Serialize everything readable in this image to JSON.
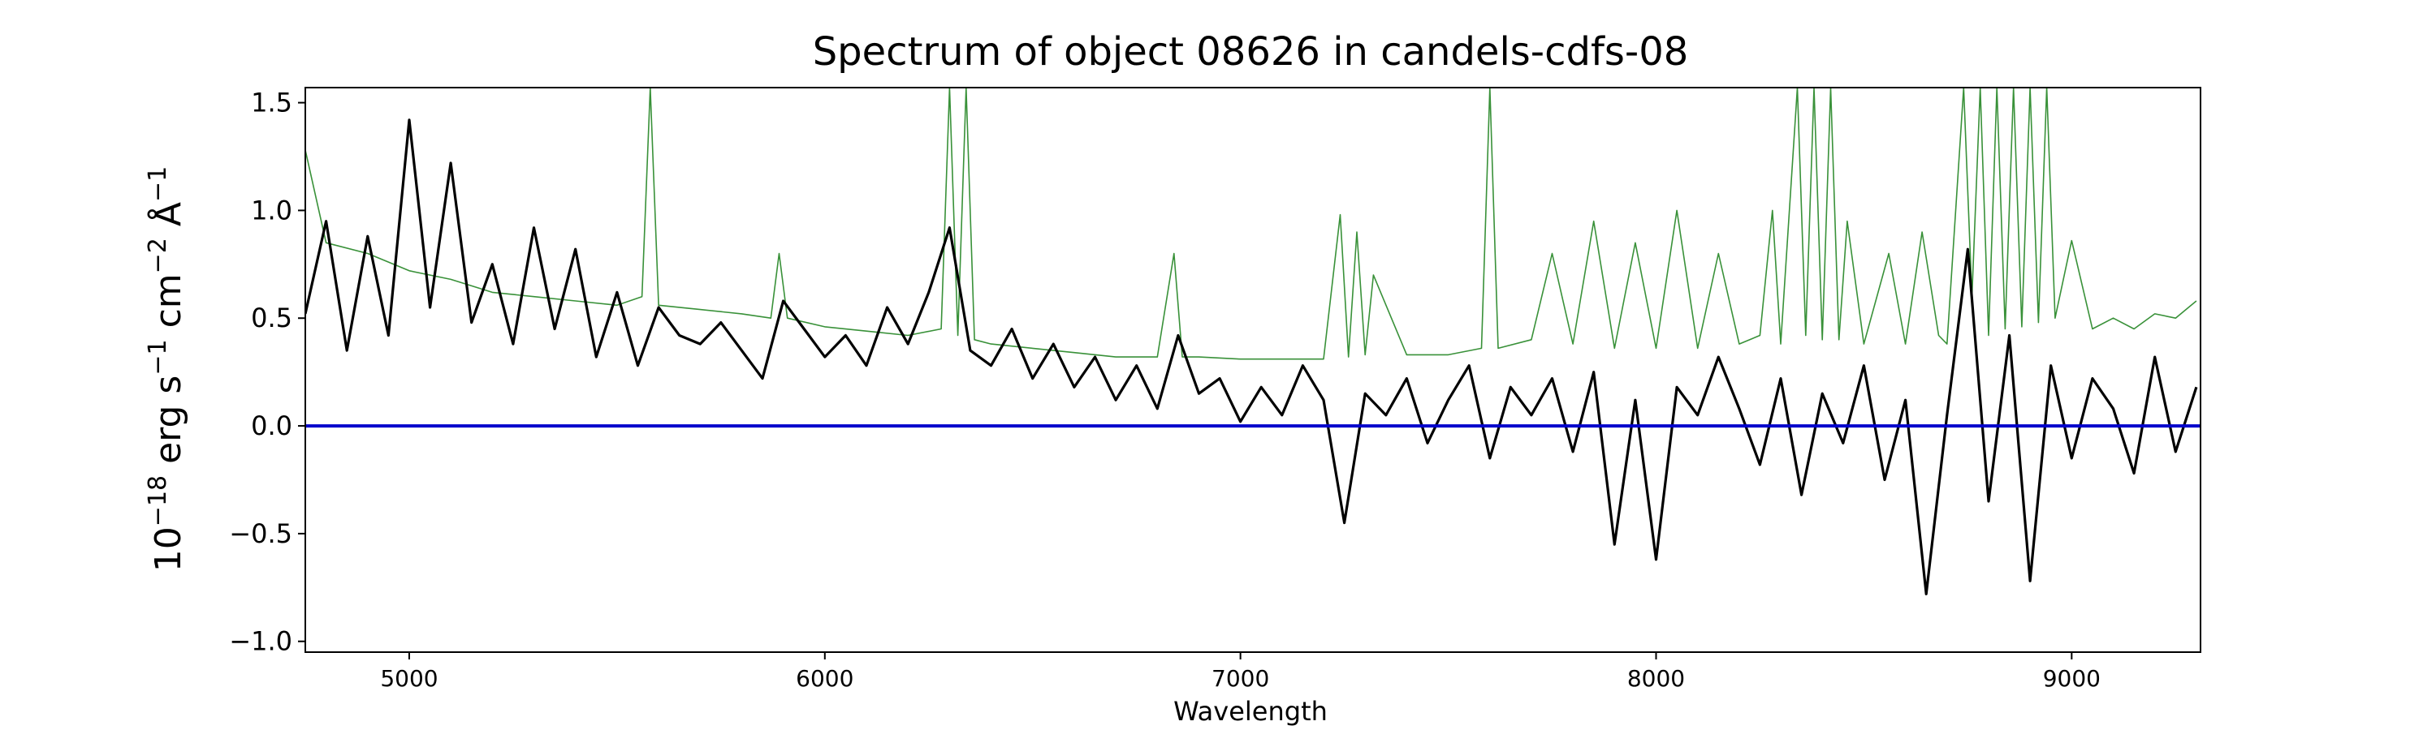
{
  "chart_data": {
    "type": "line",
    "title": "Spectrum of object 08626 in candels-cdfs-08",
    "xlabel": "Wavelength",
    "ylabel": "10−18 erg s−1 cm−2 Å−1",
    "ylabel_parts": {
      "base": "10",
      "exp1": "−18",
      "mid1": " erg s",
      "exp2": "−1",
      "mid2": " cm",
      "exp3": "−2",
      "mid3": " Å",
      "exp4": "−1"
    },
    "xlim": [
      4750,
      9310
    ],
    "ylim": [
      -1.05,
      1.57
    ],
    "x_ticks": [
      "5000",
      "6000",
      "7000",
      "8000",
      "9000"
    ],
    "x_tick_values": [
      5000,
      6000,
      7000,
      8000,
      9000
    ],
    "y_ticks": [
      "−1.0",
      "−0.5",
      "0.0",
      "0.5",
      "1.0",
      "1.5"
    ],
    "y_tick_values": [
      -1.0,
      -0.5,
      0.0,
      0.5,
      1.0,
      1.5
    ],
    "grid": false,
    "colors": {
      "flux": "#000000",
      "noise": "#2e8b2e",
      "zero_line": "#0000cc"
    },
    "series": [
      {
        "role": "flux",
        "x": [
          4750,
          4800,
          4850,
          4900,
          4950,
          5000,
          5050,
          5100,
          5150,
          5200,
          5250,
          5300,
          5350,
          5400,
          5450,
          5500,
          5550,
          5600,
          5650,
          5700,
          5750,
          5800,
          5850,
          5900,
          5950,
          6000,
          6050,
          6100,
          6150,
          6200,
          6250,
          6300,
          6350,
          6400,
          6450,
          6500,
          6550,
          6600,
          6650,
          6700,
          6750,
          6800,
          6850,
          6900,
          6950,
          7000,
          7050,
          7100,
          7150,
          7200,
          7250,
          7300,
          7350,
          7400,
          7450,
          7500,
          7550,
          7600,
          7650,
          7700,
          7750,
          7800,
          7850,
          7900,
          7950,
          8000,
          8050,
          8100,
          8150,
          8200,
          8250,
          8300,
          8350,
          8400,
          8450,
          8500,
          8550,
          8600,
          8650,
          8700,
          8750,
          8800,
          8850,
          8900,
          8950,
          9000,
          9050,
          9100,
          9150,
          9200,
          9250,
          9300
        ],
        "values": [
          0.52,
          0.95,
          0.35,
          0.88,
          0.42,
          1.42,
          0.55,
          1.22,
          0.48,
          0.75,
          0.38,
          0.92,
          0.45,
          0.82,
          0.32,
          0.62,
          0.28,
          0.55,
          0.42,
          0.38,
          0.48,
          0.35,
          0.22,
          0.58,
          0.45,
          0.32,
          0.42,
          0.28,
          0.55,
          0.38,
          0.62,
          0.92,
          0.35,
          0.28,
          0.45,
          0.22,
          0.38,
          0.18,
          0.32,
          0.12,
          0.28,
          0.08,
          0.42,
          0.15,
          0.22,
          0.02,
          0.18,
          0.05,
          0.28,
          0.12,
          -0.45,
          0.15,
          0.05,
          0.22,
          -0.08,
          0.12,
          0.28,
          -0.15,
          0.18,
          0.05,
          0.22,
          -0.12,
          0.25,
          -0.55,
          0.12,
          -0.62,
          0.18,
          0.05,
          0.32,
          0.08,
          -0.18,
          0.22,
          -0.32,
          0.15,
          -0.08,
          0.28,
          -0.25,
          0.12,
          -0.78,
          0.05,
          0.82,
          -0.35,
          0.42,
          -0.72,
          0.28,
          -0.15,
          0.22,
          0.08,
          -0.22,
          0.32,
          -0.12,
          0.18
        ]
      },
      {
        "role": "noise",
        "x": [
          4750,
          4800,
          4900,
          5000,
          5100,
          5200,
          5300,
          5400,
          5500,
          5560,
          5580,
          5600,
          5700,
          5800,
          5870,
          5890,
          5910,
          6000,
          6100,
          6200,
          6280,
          6300,
          6320,
          6340,
          6360,
          6400,
          6500,
          6600,
          6700,
          6800,
          6840,
          6860,
          6900,
          7000,
          7100,
          7200,
          7240,
          7260,
          7280,
          7300,
          7320,
          7400,
          7500,
          7580,
          7600,
          7620,
          7700,
          7750,
          7800,
          7850,
          7900,
          7950,
          8000,
          8050,
          8100,
          8150,
          8200,
          8250,
          8280,
          8300,
          8340,
          8360,
          8380,
          8400,
          8420,
          8440,
          8460,
          8500,
          8560,
          8600,
          8640,
          8680,
          8700,
          8740,
          8760,
          8780,
          8800,
          8820,
          8840,
          8860,
          8880,
          8900,
          8920,
          8940,
          8960,
          9000,
          9050,
          9100,
          9150,
          9200,
          9250,
          9300
        ],
        "values": [
          1.28,
          0.85,
          0.8,
          0.72,
          0.68,
          0.62,
          0.6,
          0.58,
          0.56,
          0.6,
          1.57,
          0.56,
          0.54,
          0.52,
          0.5,
          0.8,
          0.5,
          0.46,
          0.44,
          0.42,
          0.45,
          1.57,
          0.42,
          1.57,
          0.4,
          0.38,
          0.36,
          0.34,
          0.32,
          0.32,
          0.8,
          0.32,
          0.32,
          0.31,
          0.31,
          0.31,
          0.98,
          0.32,
          0.9,
          0.33,
          0.7,
          0.33,
          0.33,
          0.36,
          1.57,
          0.36,
          0.4,
          0.8,
          0.38,
          0.95,
          0.36,
          0.85,
          0.36,
          1.0,
          0.36,
          0.8,
          0.38,
          0.42,
          1.0,
          0.38,
          1.57,
          0.42,
          1.57,
          0.4,
          1.57,
          0.4,
          0.95,
          0.38,
          0.8,
          0.38,
          0.9,
          0.42,
          0.38,
          1.57,
          0.6,
          1.57,
          0.42,
          1.57,
          0.45,
          1.57,
          0.46,
          1.57,
          0.48,
          1.57,
          0.5,
          0.86,
          0.45,
          0.5,
          0.45,
          0.52,
          0.5,
          0.58
        ]
      },
      {
        "role": "zero_line",
        "x": [
          4750,
          9310
        ],
        "values": [
          0.0,
          0.0
        ]
      }
    ]
  }
}
